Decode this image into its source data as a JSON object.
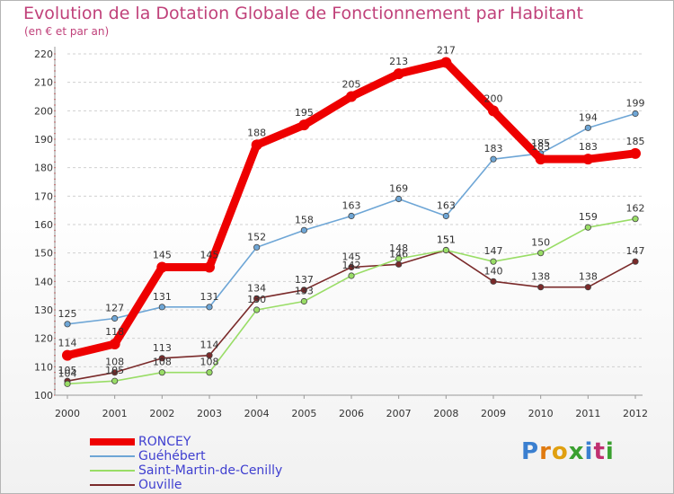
{
  "header": {
    "title": "Evolution de la Dotation Globale de Fonctionnement par Habitant",
    "subtitle": "(en € et par an)"
  },
  "chart_data": {
    "type": "line",
    "title": "Evolution de la Dotation Globale de Fonctionnement par Habitant",
    "subtitle": "(en € et par an)",
    "xlabel": "",
    "ylabel": "",
    "x": [
      "2000",
      "2001",
      "2002",
      "2003",
      "2004",
      "2005",
      "2006",
      "2007",
      "2008",
      "2009",
      "2010",
      "2011",
      "2012"
    ],
    "ylim": [
      100,
      220
    ],
    "yticks": [
      100,
      110,
      120,
      130,
      140,
      150,
      160,
      170,
      180,
      190,
      200,
      210,
      220
    ],
    "grid": "horizontal dashed",
    "legend_position": "bottom-left",
    "series": [
      {
        "name": "RONCEY",
        "color": "#ee0000",
        "values": [
          114,
          118,
          145,
          145,
          188,
          195,
          205,
          213,
          217,
          200,
          183,
          183,
          185
        ],
        "labels": [
          "114",
          "118",
          "145",
          "145",
          "188",
          "195",
          "205",
          "213",
          "217",
          "200",
          "183",
          "183",
          "185"
        ]
      },
      {
        "name": "Guéhébert",
        "color": "#6ea6d6",
        "values": [
          125,
          127,
          131,
          131,
          152,
          158,
          163,
          169,
          163,
          183,
          185,
          194,
          199
        ],
        "labels": [
          "125",
          "127",
          "131",
          "131",
          "152",
          "158",
          "163",
          "169",
          "163",
          "183",
          "185",
          "194",
          "199"
        ]
      },
      {
        "name": "Saint-Martin-de-Cenilly",
        "color": "#99dd66",
        "values": [
          104,
          105,
          108,
          108,
          130,
          133,
          142,
          148,
          151,
          147,
          150,
          159,
          162
        ],
        "labels": [
          "104",
          "105",
          "108",
          "108",
          "130",
          "133",
          "142",
          "148",
          "151",
          "147",
          "150",
          "159",
          "162"
        ]
      },
      {
        "name": "Ouville",
        "color": "#7a2a2a",
        "values": [
          105,
          108,
          113,
          114,
          134,
          137,
          145,
          146,
          151,
          140,
          138,
          138,
          147
        ],
        "labels": [
          "105",
          "108",
          "113",
          "114",
          "134",
          "137",
          "145",
          "146",
          "151",
          "140",
          "138",
          "138",
          "147"
        ]
      }
    ]
  },
  "legend": {
    "items": [
      {
        "label": "RONCEY",
        "color": "#ee0000"
      },
      {
        "label": "Guéhébert",
        "color": "#6ea6d6"
      },
      {
        "label": "Saint-Martin-de-Cenilly",
        "color": "#99dd66"
      },
      {
        "label": "Ouville",
        "color": "#7a2a2a"
      }
    ]
  },
  "logo": {
    "letters": [
      "P",
      "r",
      "o",
      "x",
      "i",
      "t",
      "i"
    ],
    "colors": [
      "#3a7fd0",
      "#e07a10",
      "#e0a010",
      "#3aa030",
      "#3a7fd0",
      "#c03070",
      "#3aa030"
    ]
  }
}
